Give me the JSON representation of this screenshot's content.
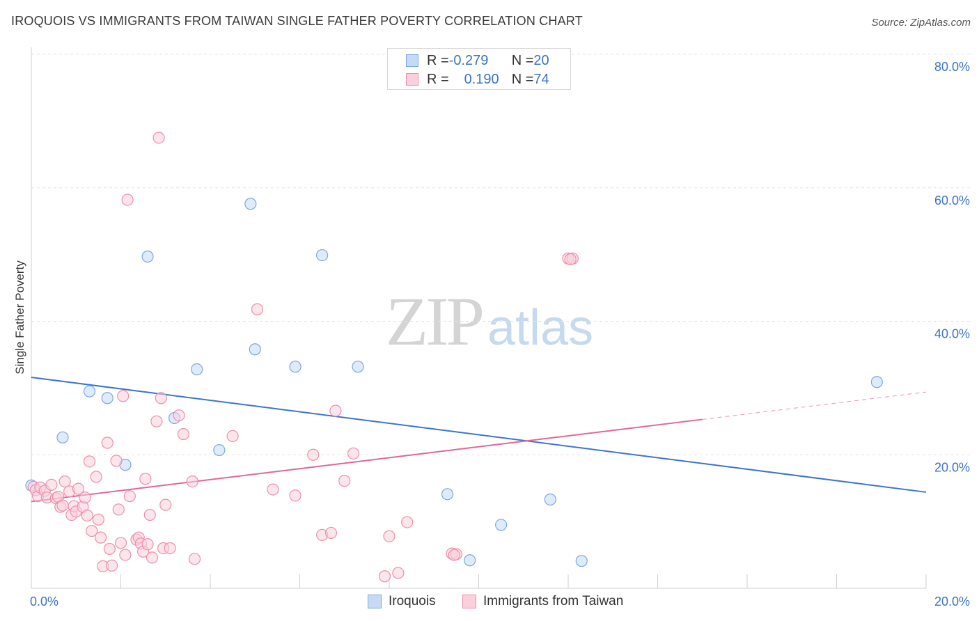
{
  "header": {
    "title": "IROQUOIS VS IMMIGRANTS FROM TAIWAN SINGLE FATHER POVERTY CORRELATION CHART",
    "source": "Source: ZipAtlas.com"
  },
  "legend": {
    "iroquois": {
      "r_label": "R = ",
      "r_value": "-0.279",
      "n_label": "N = ",
      "n_value": "20"
    },
    "taiwan": {
      "r_label": "R = ",
      "r_value": "0.190",
      "n_label": "N = ",
      "n_value": "74"
    }
  },
  "watermark": {
    "zip": "ZIP",
    "atlas": "atlas"
  },
  "colors": {
    "iroquois_fill": "#c5daf5",
    "iroquois_stroke": "#7aa8e0",
    "iroquois_line": "#3a74d0",
    "taiwan_fill": "#fbd0dc",
    "taiwan_stroke": "#ec8fab",
    "taiwan_line": "#e0679a",
    "tick_text": "#3a74c4",
    "grid": "#e4e4e4"
  },
  "chart_data": {
    "type": "scatter",
    "title": "IROQUOIS VS IMMIGRANTS FROM TAIWAN SINGLE FATHER POVERTY CORRELATION CHART",
    "xlabel": "",
    "ylabel": "Single Father Poverty",
    "xlim": [
      0,
      20
    ],
    "ylim": [
      0,
      80
    ],
    "x_tick_labels": [
      {
        "value": 0,
        "label": "0.0%"
      },
      {
        "value": 20,
        "label": "20.0%"
      }
    ],
    "y_tick_labels": [
      {
        "value": 20,
        "label": "20.0%"
      },
      {
        "value": 40,
        "label": "40.0%"
      },
      {
        "value": 60,
        "label": "60.0%"
      },
      {
        "value": 80,
        "label": "80.0%"
      }
    ],
    "grid": true,
    "legend_position": "top-center",
    "series": [
      {
        "name": "Iroquois",
        "key": "iroquois",
        "r": -0.279,
        "n": 20,
        "points": [
          [
            0.0,
            15.4
          ],
          [
            0.7,
            22.6
          ],
          [
            1.3,
            29.5
          ],
          [
            1.7,
            28.5
          ],
          [
            2.1,
            18.5
          ],
          [
            2.6,
            49.7
          ],
          [
            3.2,
            25.5
          ],
          [
            3.7,
            32.8
          ],
          [
            4.2,
            20.7
          ],
          [
            4.9,
            57.6
          ],
          [
            5.0,
            35.8
          ],
          [
            5.9,
            33.2
          ],
          [
            6.5,
            49.9
          ],
          [
            7.3,
            33.2
          ],
          [
            9.3,
            14.1
          ],
          [
            9.8,
            4.2
          ],
          [
            10.5,
            9.5
          ],
          [
            11.6,
            13.3
          ],
          [
            12.3,
            4.1
          ],
          [
            18.9,
            30.9
          ]
        ],
        "trend": {
          "x0": 0,
          "y0": 31.6,
          "x1": 20,
          "y1": 14.4,
          "dashed_from_x": null
        }
      },
      {
        "name": "Immigrants from Taiwan",
        "key": "taiwan",
        "r": 0.19,
        "n": 74,
        "points": [
          [
            0.05,
            15.2
          ],
          [
            0.1,
            14.7
          ],
          [
            0.15,
            13.8
          ],
          [
            0.2,
            15.1
          ],
          [
            0.3,
            14.6
          ],
          [
            0.35,
            13.6
          ],
          [
            0.45,
            15.5
          ],
          [
            0.55,
            13.5
          ],
          [
            0.6,
            13.7
          ],
          [
            0.65,
            12.2
          ],
          [
            0.7,
            12.4
          ],
          [
            0.75,
            16.0
          ],
          [
            0.85,
            14.5
          ],
          [
            0.9,
            11.0
          ],
          [
            0.95,
            12.3
          ],
          [
            1.0,
            11.5
          ],
          [
            1.05,
            14.9
          ],
          [
            1.15,
            12.2
          ],
          [
            1.2,
            13.6
          ],
          [
            1.25,
            10.9
          ],
          [
            1.3,
            19.0
          ],
          [
            1.35,
            8.6
          ],
          [
            1.45,
            16.7
          ],
          [
            1.5,
            10.3
          ],
          [
            1.55,
            7.6
          ],
          [
            1.6,
            3.3
          ],
          [
            1.7,
            21.8
          ],
          [
            1.75,
            5.9
          ],
          [
            1.8,
            3.4
          ],
          [
            1.9,
            19.1
          ],
          [
            1.95,
            11.8
          ],
          [
            2.0,
            6.8
          ],
          [
            2.05,
            28.8
          ],
          [
            2.1,
            5.0
          ],
          [
            2.15,
            58.2
          ],
          [
            2.2,
            13.8
          ],
          [
            2.35,
            7.3
          ],
          [
            2.4,
            7.6
          ],
          [
            2.45,
            6.7
          ],
          [
            2.5,
            5.5
          ],
          [
            2.55,
            16.4
          ],
          [
            2.6,
            6.6
          ],
          [
            2.65,
            11.0
          ],
          [
            2.7,
            4.6
          ],
          [
            2.8,
            25.0
          ],
          [
            2.85,
            67.5
          ],
          [
            2.9,
            28.5
          ],
          [
            2.95,
            6.0
          ],
          [
            3.0,
            12.5
          ],
          [
            3.1,
            6.0
          ],
          [
            3.3,
            25.9
          ],
          [
            3.4,
            23.1
          ],
          [
            3.6,
            16.0
          ],
          [
            3.65,
            4.4
          ],
          [
            4.5,
            22.8
          ],
          [
            5.05,
            41.8
          ],
          [
            5.4,
            14.8
          ],
          [
            5.9,
            13.9
          ],
          [
            6.3,
            20.0
          ],
          [
            6.5,
            8.0
          ],
          [
            6.7,
            8.3
          ],
          [
            6.8,
            26.6
          ],
          [
            7.0,
            16.1
          ],
          [
            7.2,
            20.2
          ],
          [
            7.9,
            1.8
          ],
          [
            8.0,
            7.8
          ],
          [
            8.2,
            2.3
          ],
          [
            8.4,
            9.9
          ],
          [
            9.4,
            5.2
          ],
          [
            9.5,
            5.1
          ],
          [
            12.0,
            49.4
          ],
          [
            12.1,
            49.4
          ],
          [
            12.05,
            49.3
          ],
          [
            9.45,
            5.0
          ]
        ],
        "trend": {
          "x0": 0,
          "y0": 13.0,
          "x1": 20,
          "y1": 29.4,
          "dashed_from_x": 15
        }
      }
    ]
  },
  "bottom_legend": {
    "iroquois_label": "Iroquois",
    "taiwan_label": "Immigrants from Taiwan"
  }
}
